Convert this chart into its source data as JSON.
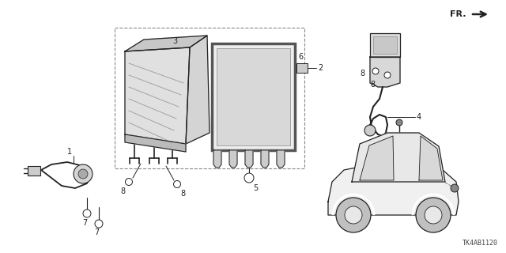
{
  "part_code": "TK4AB1120",
  "background_color": "#ffffff",
  "line_color": "#222222",
  "fig_width": 6.4,
  "fig_height": 3.2,
  "dpi": 100,
  "part_label_fontsize": 7,
  "part_code_fontsize": 6
}
